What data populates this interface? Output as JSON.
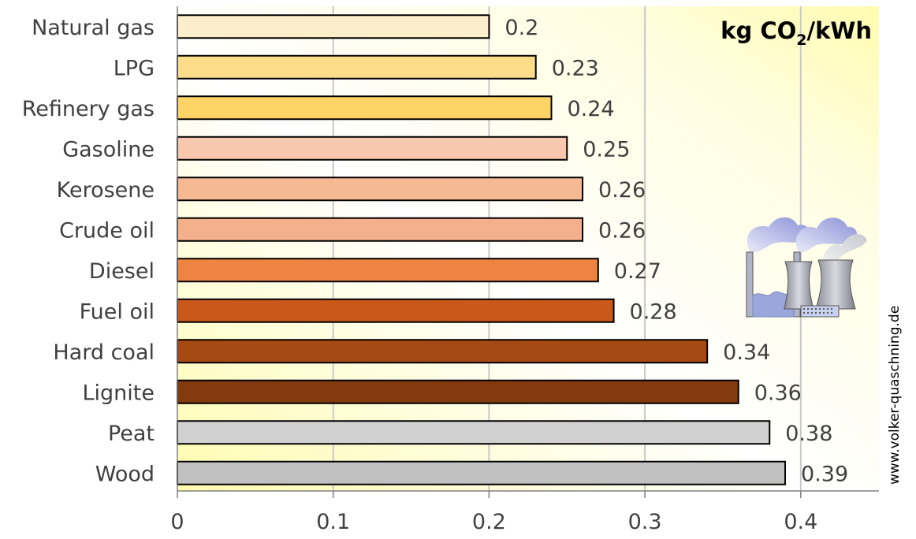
{
  "chart_data": {
    "type": "bar",
    "orientation": "horizontal",
    "categories": [
      "Natural gas",
      "LPG",
      "Refinery gas",
      "Gasoline",
      "Kerosene",
      "Crude oil",
      "Diesel",
      "Fuel oil",
      "Hard coal",
      "Lignite",
      "Peat",
      "Wood"
    ],
    "values": [
      0.2,
      0.23,
      0.24,
      0.25,
      0.26,
      0.26,
      0.27,
      0.28,
      0.34,
      0.36,
      0.38,
      0.39
    ],
    "value_labels": [
      "0.2",
      "0.23",
      "0.24",
      "0.25",
      "0.26",
      "0.26",
      "0.27",
      "0.28",
      "0.34",
      "0.36",
      "0.38",
      "0.39"
    ],
    "colors": [
      "#fdeecb",
      "#fddc8a",
      "#fdd465",
      "#f7c8ae",
      "#f5b994",
      "#f4b08a",
      "#ee8442",
      "#c9581a",
      "#a64912",
      "#843a0f",
      "#d1d1d1",
      "#c1c1c1"
    ],
    "xlim": [
      0,
      0.45
    ],
    "xticks": [
      0,
      0.1,
      0.2,
      0.3,
      0.4
    ],
    "xtick_labels": [
      "0",
      "0.1",
      "0.2",
      "0.3",
      "0.4"
    ],
    "grid": true,
    "unit_label": {
      "prefix": "kg CO",
      "subscript": "2",
      "suffix": "/kWh"
    },
    "credit": "www.volker-quaschning.de",
    "illustration": "power-plant-icon"
  }
}
